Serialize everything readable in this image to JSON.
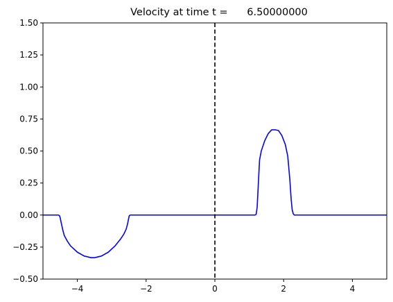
{
  "chart_data": {
    "type": "line",
    "title": "Velocity at time t =      6.50000000",
    "xlabel": "",
    "ylabel": "",
    "xlim": [
      -5,
      5
    ],
    "ylim": [
      -0.5,
      1.5
    ],
    "x_ticks": [
      -4,
      -2,
      0,
      2,
      4
    ],
    "x_tick_labels": [
      "−4",
      "−2",
      "0",
      "2",
      "4"
    ],
    "y_ticks": [
      -0.5,
      -0.25,
      0,
      0.25,
      0.5,
      0.75,
      1.0,
      1.25,
      1.5
    ],
    "y_tick_labels": [
      "−0.50",
      "−0.25",
      "0.00",
      "0.25",
      "0.50",
      "0.75",
      "1.00",
      "1.25",
      "1.50"
    ],
    "grid": false,
    "vertical_line": {
      "x": 0,
      "style": "dashed",
      "color": "#000000"
    },
    "series": [
      {
        "color": "#0000ff",
        "x": [
          -5.0,
          -4.6,
          -4.55,
          -4.52,
          -4.5,
          -4.47,
          -4.42,
          -4.38,
          -4.3,
          -4.2,
          -4.0,
          -3.8,
          -3.6,
          -3.5,
          -3.3,
          -3.1,
          -2.9,
          -2.75,
          -2.65,
          -2.58,
          -2.54,
          -2.51,
          -2.49,
          -2.46,
          -2.0,
          0.0,
          1.0,
          1.17,
          1.2,
          1.23,
          1.26,
          1.3,
          1.35,
          1.45,
          1.55,
          1.65,
          1.75,
          1.85,
          1.95,
          2.05,
          2.12,
          2.18,
          2.22,
          2.25,
          2.28,
          2.31,
          2.35,
          2.5,
          3.0,
          4.0,
          5.0
        ],
        "y": [
          0.0,
          0.0,
          0.0,
          -0.005,
          -0.02,
          -0.06,
          -0.12,
          -0.16,
          -0.2,
          -0.24,
          -0.29,
          -0.32,
          -0.333,
          -0.333,
          -0.32,
          -0.29,
          -0.24,
          -0.19,
          -0.15,
          -0.11,
          -0.07,
          -0.03,
          -0.005,
          0.0,
          0.0,
          0.0,
          0.0,
          0.0,
          0.005,
          0.06,
          0.22,
          0.43,
          0.5,
          0.58,
          0.635,
          0.665,
          0.666,
          0.66,
          0.62,
          0.55,
          0.46,
          0.28,
          0.12,
          0.04,
          0.01,
          0.0,
          0.0,
          0.0,
          0.0,
          0.0,
          0.0
        ]
      }
    ]
  }
}
